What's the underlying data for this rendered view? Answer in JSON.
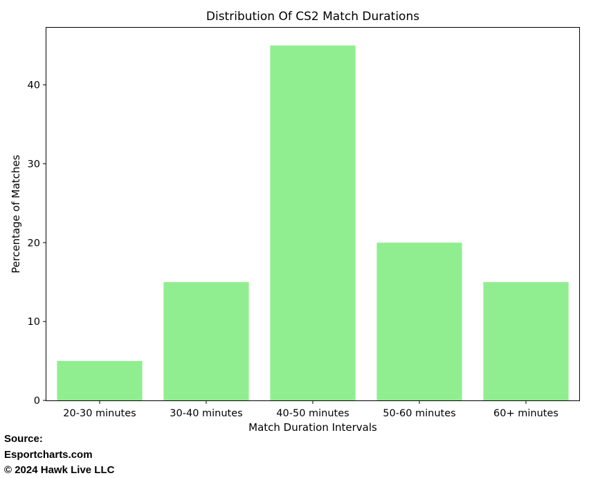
{
  "chart_data": {
    "type": "bar",
    "title": "Distribution Of CS2 Match Durations",
    "xlabel": "Match Duration Intervals",
    "ylabel": "Percentage of Matches",
    "categories": [
      "20-30 minutes",
      "30-40 minutes",
      "40-50 minutes",
      "50-60 minutes",
      "60+ minutes"
    ],
    "values": [
      5,
      15,
      45,
      20,
      15
    ],
    "ylim": [
      0,
      47.25
    ],
    "yticks": [
      0,
      10,
      20,
      30,
      40
    ],
    "bar_color": "#90ee90",
    "grid": false,
    "legend": "none"
  },
  "source": {
    "line1": "Source:",
    "line2": "Esportcharts.com",
    "line3": "© 2024 Hawk Live LLC"
  }
}
